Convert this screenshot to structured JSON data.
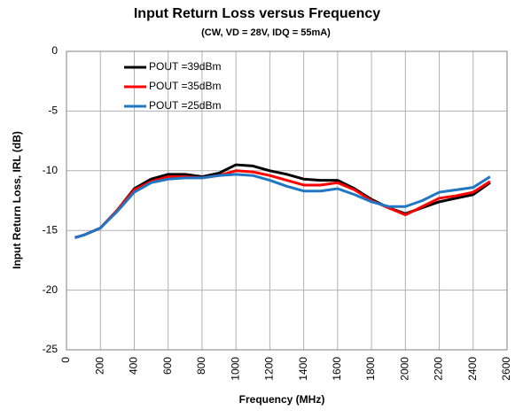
{
  "chart_data": {
    "type": "line",
    "title": "Input Return Loss versus Frequency",
    "subtitle": "(CW, VD = 28V, IDQ = 55mA)",
    "x_label": "Frequency (MHz)",
    "y_label": "Input Return Loss, IRL (dB)",
    "x": [
      50,
      100,
      200,
      300,
      400,
      500,
      600,
      700,
      800,
      900,
      1000,
      1100,
      1200,
      1300,
      1400,
      1500,
      1600,
      1700,
      1800,
      1900,
      2000,
      2100,
      2200,
      2300,
      2400,
      2500
    ],
    "series": [
      {
        "name": "POUT =39dBm",
        "color": "#000000",
        "values": [
          -15.6,
          -15.4,
          -14.8,
          -13.3,
          -11.5,
          -10.7,
          -10.3,
          -10.3,
          -10.5,
          -10.2,
          -9.5,
          -9.6,
          -10.0,
          -10.3,
          -10.7,
          -10.8,
          -10.8,
          -11.5,
          -12.4,
          -13.1,
          -13.6,
          -13.1,
          -12.6,
          -12.3,
          -12.0,
          -11.0
        ]
      },
      {
        "name": "POUT =35dBm",
        "color": "#ff0000",
        "values": [
          -15.6,
          -15.4,
          -14.8,
          -13.3,
          -11.6,
          -10.9,
          -10.5,
          -10.5,
          -10.6,
          -10.4,
          -10.0,
          -10.1,
          -10.4,
          -10.8,
          -11.2,
          -11.2,
          -11.0,
          -11.6,
          -12.5,
          -13.1,
          -13.7,
          -13.0,
          -12.3,
          -12.1,
          -11.8,
          -10.9
        ]
      },
      {
        "name": "POUT =25dBm",
        "color": "#1f77c4",
        "values": [
          -15.6,
          -15.4,
          -14.8,
          -13.4,
          -11.8,
          -11.0,
          -10.7,
          -10.6,
          -10.6,
          -10.4,
          -10.3,
          -10.4,
          -10.8,
          -11.3,
          -11.7,
          -11.7,
          -11.5,
          -12.0,
          -12.6,
          -13.0,
          -13.0,
          -12.5,
          -11.8,
          -11.6,
          -11.4,
          -10.5
        ]
      }
    ],
    "xlim": [
      0,
      2600
    ],
    "xticks": [
      0,
      200,
      400,
      600,
      800,
      1000,
      1200,
      1400,
      1600,
      1800,
      2000,
      2200,
      2400,
      2600
    ],
    "ylim": [
      -25,
      0
    ],
    "yticks": [
      -25,
      -20,
      -15,
      -10,
      -5,
      0
    ],
    "grid": true,
    "legend": "upper left"
  }
}
